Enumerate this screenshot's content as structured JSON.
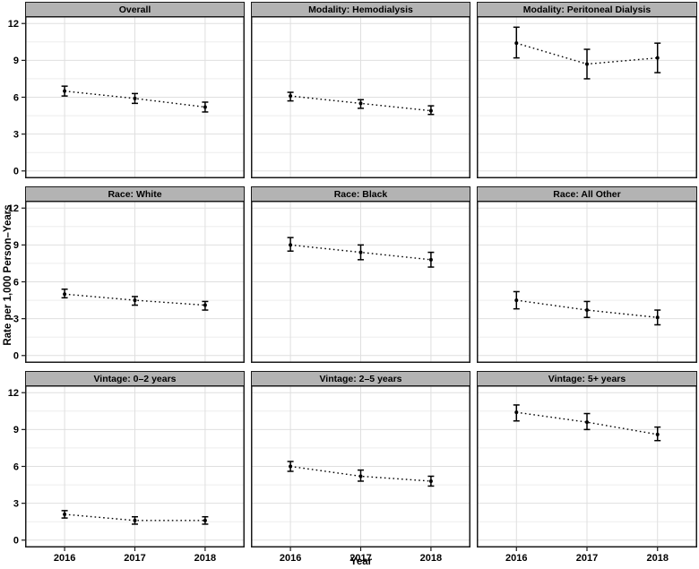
{
  "chart_data": {
    "type": "pointrange",
    "description": "3x3 facet grid of yearly rates with 95% CI error bars and dotted trend lines",
    "x": [
      "2016",
      "2017",
      "2018"
    ],
    "xlabel": "Year",
    "ylabel": "Rate per 1,000 Person–Years",
    "ylim": [
      0,
      12
    ],
    "yticks": [
      0,
      3,
      6,
      9,
      12
    ],
    "yminor": [
      1.5,
      4.5,
      7.5,
      10.5
    ],
    "grid": "horizontal major+minor, vertical major at each year; light gray on white panel",
    "legend": "none",
    "line_style": "dotted",
    "marker": "filled point with error bar caps",
    "colors": {
      "data": "#000000",
      "strip_fill": "#b3b3b3",
      "panel_border": "#1a1a1a",
      "grid_major": "#dfdfdf",
      "grid_minor": "#ededed",
      "panel_bg": "#ffffff"
    },
    "facets": [
      {
        "title": "Overall",
        "values": [
          6.5,
          5.9,
          5.2
        ],
        "lo": [
          6.1,
          5.5,
          4.8
        ],
        "hi": [
          6.9,
          6.3,
          5.6
        ]
      },
      {
        "title": "Modality: Hemodialysis",
        "values": [
          6.1,
          5.5,
          4.9
        ],
        "lo": [
          5.7,
          5.1,
          4.6
        ],
        "hi": [
          6.4,
          5.8,
          5.3
        ]
      },
      {
        "title": "Modality: Peritoneal Dialysis",
        "values": [
          10.4,
          8.7,
          9.2
        ],
        "lo": [
          9.2,
          7.5,
          8.0
        ],
        "hi": [
          11.7,
          9.9,
          10.4
        ]
      },
      {
        "title": "Race: White",
        "values": [
          5.0,
          4.5,
          4.1
        ],
        "lo": [
          4.7,
          4.1,
          3.7
        ],
        "hi": [
          5.4,
          4.8,
          4.4
        ]
      },
      {
        "title": "Race: Black",
        "values": [
          9.0,
          8.4,
          7.8
        ],
        "lo": [
          8.5,
          7.8,
          7.2
        ],
        "hi": [
          9.6,
          9.0,
          8.4
        ]
      },
      {
        "title": "Race: All Other",
        "values": [
          4.5,
          3.7,
          3.1
        ],
        "lo": [
          3.8,
          3.1,
          2.5
        ],
        "hi": [
          5.2,
          4.4,
          3.7
        ]
      },
      {
        "title": "Vintage: 0–2 years",
        "values": [
          2.1,
          1.6,
          1.6
        ],
        "lo": [
          1.8,
          1.3,
          1.3
        ],
        "hi": [
          2.4,
          1.9,
          1.9
        ]
      },
      {
        "title": "Vintage: 2–5 years",
        "values": [
          6.0,
          5.2,
          4.8
        ],
        "lo": [
          5.6,
          4.8,
          4.4
        ],
        "hi": [
          6.4,
          5.7,
          5.2
        ]
      },
      {
        "title": "Vintage: 5+ years",
        "values": [
          10.4,
          9.6,
          8.6
        ],
        "lo": [
          9.7,
          9.0,
          8.1
        ],
        "hi": [
          11.0,
          10.3,
          9.2
        ]
      }
    ]
  }
}
